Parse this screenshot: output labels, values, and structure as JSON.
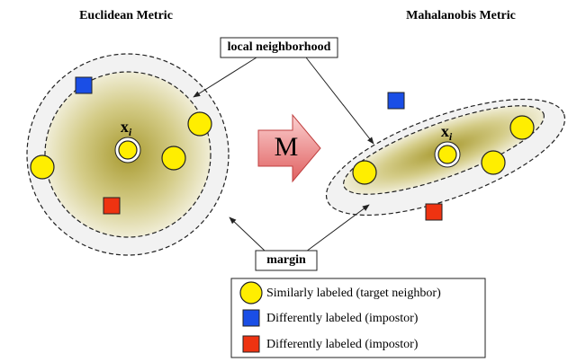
{
  "left_panel": {
    "title": "Euclidean Metric"
  },
  "right_panel": {
    "title": "Mahalanobis Metric"
  },
  "transform_label": "M",
  "point_label": {
    "symbol": "x",
    "subscript": "i"
  },
  "callouts": [
    "local neighborhood",
    "margin"
  ],
  "legend": [
    "Similarly labeled (target neighbor)",
    "Differently labeled (impostor)",
    "Differently labeled (impostor)"
  ]
}
